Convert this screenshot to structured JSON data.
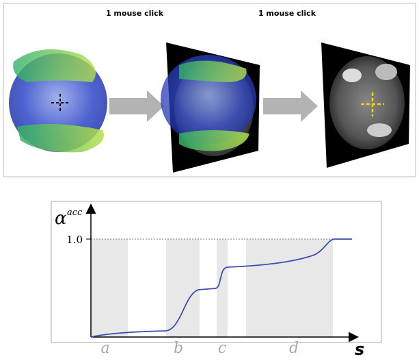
{
  "figure": {
    "top_panel": {
      "step_labels": [
        "1 mouse click",
        "1 mouse click"
      ]
    },
    "plot": {
      "y_axis_label": "α",
      "y_axis_label_superscript": "acc",
      "y_tick": "1.0",
      "regions": [
        "a",
        "b",
        "c",
        "d"
      ],
      "x_axis_label": "s"
    }
  }
}
